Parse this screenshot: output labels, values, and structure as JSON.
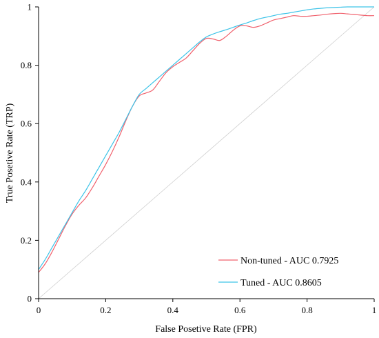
{
  "chart_data": {
    "type": "line",
    "title": "",
    "xlabel": "False Posetive Rate (FPR)",
    "ylabel": "True Posetive Rate (TRP)",
    "xlim": [
      0,
      1
    ],
    "ylim": [
      0,
      1
    ],
    "x_ticks": [
      0,
      0.2,
      0.4,
      0.6,
      0.8,
      1
    ],
    "y_ticks": [
      0,
      0.2,
      0.4,
      0.6,
      0.8,
      1
    ],
    "x_tick_labels": [
      "0",
      "0.2",
      "0.4",
      "0.6",
      "0.8",
      "1"
    ],
    "y_tick_labels": [
      "0",
      "0.2",
      "0.4",
      "0.6",
      "0.8",
      "1"
    ],
    "grid": false,
    "legend_position": "bottom-right",
    "reference_line": {
      "x": [
        0,
        1
      ],
      "y": [
        0,
        1
      ],
      "color": "#cfcfcf"
    },
    "series": [
      {
        "name": "Non-tuned - AUC 0.7925",
        "color": "#f0606c",
        "x": [
          0,
          0.02,
          0.04,
          0.06,
          0.08,
          0.1,
          0.12,
          0.14,
          0.16,
          0.18,
          0.2,
          0.22,
          0.24,
          0.26,
          0.28,
          0.3,
          0.32,
          0.34,
          0.36,
          0.38,
          0.4,
          0.42,
          0.44,
          0.46,
          0.48,
          0.5,
          0.52,
          0.54,
          0.56,
          0.58,
          0.6,
          0.62,
          0.64,
          0.66,
          0.68,
          0.7,
          0.72,
          0.74,
          0.76,
          0.78,
          0.8,
          0.82,
          0.84,
          0.86,
          0.88,
          0.9,
          0.92,
          0.94,
          0.96,
          0.98,
          1.0
        ],
        "y": [
          0.09,
          0.12,
          0.16,
          0.205,
          0.25,
          0.29,
          0.32,
          0.345,
          0.38,
          0.42,
          0.46,
          0.505,
          0.555,
          0.61,
          0.66,
          0.695,
          0.705,
          0.715,
          0.745,
          0.775,
          0.795,
          0.81,
          0.825,
          0.85,
          0.875,
          0.892,
          0.89,
          0.885,
          0.9,
          0.92,
          0.935,
          0.935,
          0.93,
          0.935,
          0.945,
          0.955,
          0.96,
          0.965,
          0.97,
          0.968,
          0.968,
          0.97,
          0.972,
          0.975,
          0.977,
          0.978,
          0.976,
          0.974,
          0.972,
          0.97,
          0.97
        ]
      },
      {
        "name": "Tuned - AUC 0.8605",
        "color": "#3cc3e8",
        "x": [
          0,
          0.02,
          0.04,
          0.06,
          0.08,
          0.1,
          0.12,
          0.14,
          0.16,
          0.18,
          0.2,
          0.22,
          0.24,
          0.26,
          0.28,
          0.3,
          0.32,
          0.34,
          0.36,
          0.38,
          0.4,
          0.42,
          0.44,
          0.46,
          0.48,
          0.5,
          0.52,
          0.54,
          0.56,
          0.58,
          0.6,
          0.62,
          0.64,
          0.66,
          0.68,
          0.7,
          0.72,
          0.74,
          0.76,
          0.78,
          0.8,
          0.82,
          0.84,
          0.86,
          0.88,
          0.9,
          0.92,
          0.94,
          0.96,
          0.98,
          1.0
        ],
        "y": [
          0.1,
          0.135,
          0.175,
          0.215,
          0.255,
          0.295,
          0.335,
          0.37,
          0.41,
          0.45,
          0.49,
          0.53,
          0.57,
          0.615,
          0.66,
          0.7,
          0.72,
          0.74,
          0.76,
          0.78,
          0.8,
          0.82,
          0.84,
          0.86,
          0.88,
          0.897,
          0.907,
          0.915,
          0.922,
          0.93,
          0.938,
          0.945,
          0.953,
          0.96,
          0.965,
          0.97,
          0.975,
          0.978,
          0.982,
          0.986,
          0.99,
          0.993,
          0.995,
          0.997,
          0.998,
          0.999,
          1.0,
          1.0,
          1.0,
          1.0,
          1.0
        ]
      }
    ]
  }
}
